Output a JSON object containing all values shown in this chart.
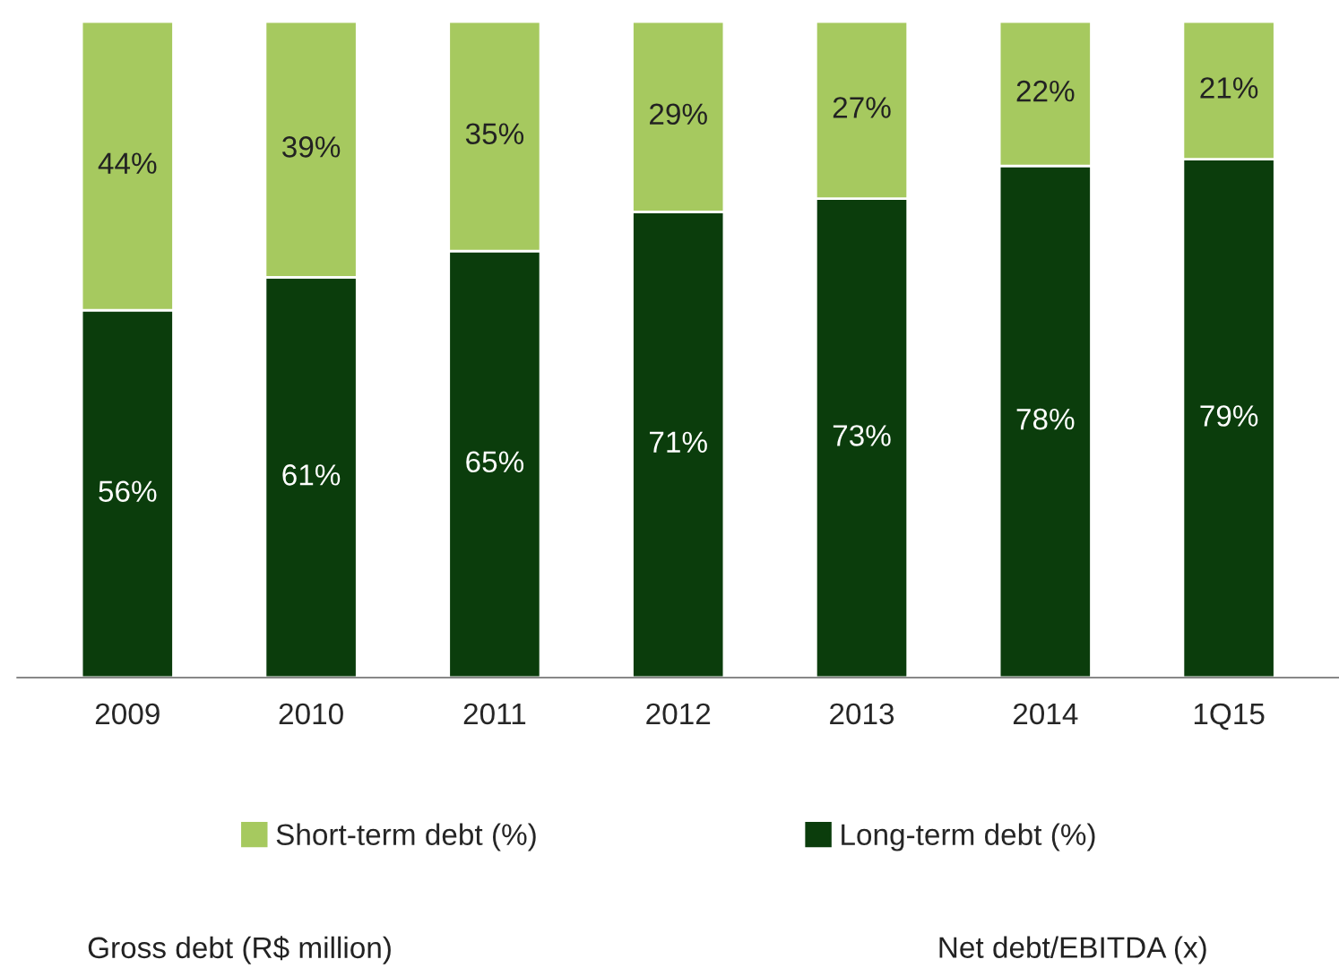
{
  "chart_data": {
    "type": "bar",
    "stacked": true,
    "categories": [
      "2009",
      "2010",
      "2011",
      "2012",
      "2013",
      "2014",
      "1Q15"
    ],
    "series": [
      {
        "name": "Long-term debt (%)",
        "color": "#0b3d0c",
        "values": [
          56,
          61,
          65,
          71,
          73,
          78,
          79
        ],
        "value_labels": [
          "56%",
          "61%",
          "65%",
          "71%",
          "73%",
          "78%",
          "79%"
        ]
      },
      {
        "name": "Short-term debt (%)",
        "color": "#a6c95f",
        "values": [
          44,
          39,
          35,
          29,
          27,
          22,
          21
        ],
        "value_labels": [
          "44%",
          "39%",
          "35%",
          "29%",
          "27%",
          "22%",
          "21%"
        ]
      }
    ],
    "tick_labels": "x",
    "legend": "bottom",
    "annotations": [
      "Gross debt (R$ million)",
      "Net debt/EBITDA (x)"
    ]
  }
}
